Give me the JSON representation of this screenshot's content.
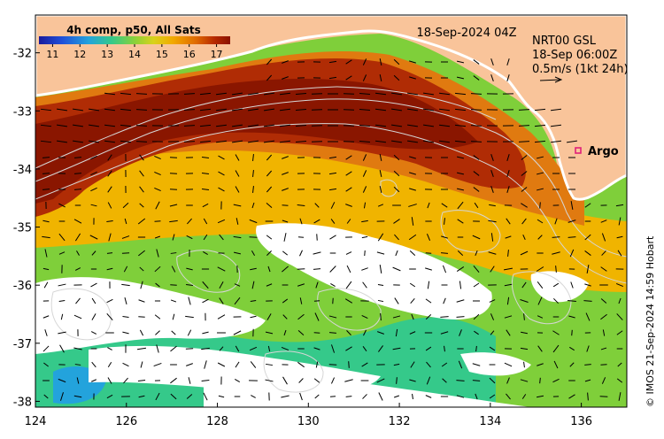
{
  "map": {
    "product_title": "4h comp, p50, All Sats",
    "date_label": "18-Sep-2024 04Z",
    "current_source": "NRT00 GSL",
    "current_time": "18-Sep 06:00Z",
    "current_scale_label": "0.5m/s (1kt 24h)",
    "marker_label": "Argo",
    "credit": "© IMOS 21-Sep-2024 14:59 Hobart",
    "colorbar": {
      "ticks": [
        "11",
        "12",
        "13",
        "14",
        "15",
        "16",
        "17"
      ],
      "vmin": 10.5,
      "vmax": 17.5,
      "colors": [
        "#1a1a9c",
        "#1f4fd9",
        "#23a3dc",
        "#35c98a",
        "#8ad13a",
        "#d9d21a",
        "#f2a900",
        "#e06b00",
        "#b52800",
        "#8a1200"
      ]
    },
    "x_axis": {
      "ticks": [
        "124",
        "126",
        "128",
        "130",
        "132",
        "134",
        "136"
      ],
      "min": 124,
      "max": 137
    },
    "y_axis": {
      "ticks": [
        "-32",
        "-33",
        "-34",
        "-35",
        "-36",
        "-37",
        "-38"
      ],
      "min": -38.1,
      "max": -31.35
    },
    "colors": {
      "land": "#f9c49a",
      "no_data": "#ffffff",
      "marker": "#e0207a"
    }
  }
}
